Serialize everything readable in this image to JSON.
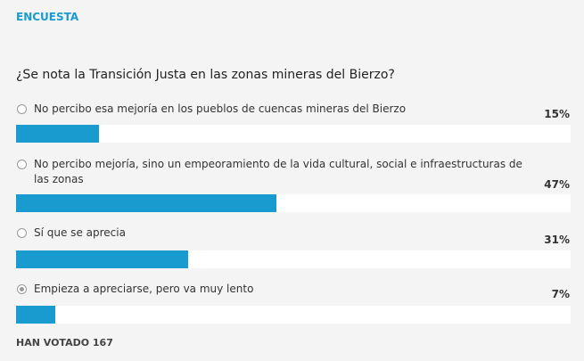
{
  "header": {
    "title": "ENCUESTA"
  },
  "question": "¿Se nota la Transición Justa en las zonas mineras del Bierzo?",
  "options": [
    {
      "label": "No percibo esa mejoría en los pueblos de cuencas mineras del Bierzo",
      "value": 15,
      "value_label": "15%"
    },
    {
      "label": "No percibo mejoría, sino un empeoramiento de la vida cultural, social e infraestructuras de las zonas",
      "value": 47,
      "value_label": "47%"
    },
    {
      "label": "Sí que se aprecia",
      "value": 31,
      "value_label": "31%"
    },
    {
      "label": "Empieza a apreciarse, pero va muy lento",
      "value": 7,
      "value_label": "7%"
    }
  ],
  "footer": "HAN VOTADO 167"
}
